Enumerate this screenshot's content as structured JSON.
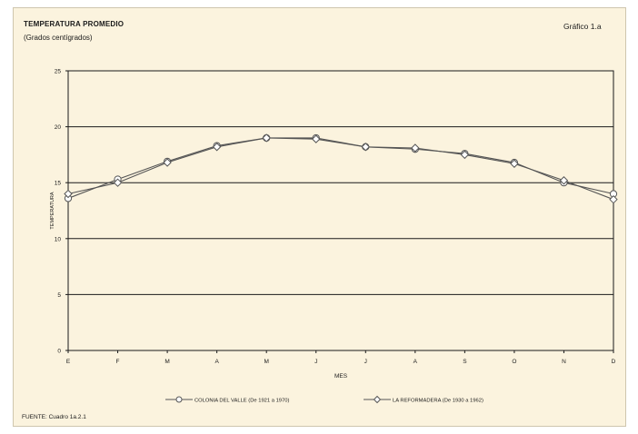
{
  "header": {
    "title": "TEMPERATURA PROMEDIO",
    "subtitle": "(Grados centígrados)",
    "figure_number": "Gráfico 1.a"
  },
  "footer": {
    "source": "FUENTE: Cuadro 1a.2.1"
  },
  "colors": {
    "panel_bg": "#fbf3de",
    "plot_bg": "#fbf3de",
    "gridline": "#1a1a1a",
    "series_line": "#555555"
  },
  "chart_data": {
    "type": "line",
    "xlabel": "MES",
    "ylabel": "TEMPERATURA",
    "categories": [
      "E",
      "F",
      "M",
      "A",
      "M",
      "J",
      "J",
      "A",
      "S",
      "O",
      "N",
      "D"
    ],
    "y_ticks": [
      "0",
      "5",
      "10",
      "15",
      "20",
      "25"
    ],
    "ylim": [
      0,
      25
    ],
    "grid": true,
    "legend_position": "bottom",
    "series": [
      {
        "name": "COLONIA DEL VALLE (De 1921 a 1970)",
        "marker": "circle",
        "values": [
          13.6,
          15.3,
          16.9,
          18.3,
          19.0,
          19.0,
          18.2,
          18.0,
          17.6,
          16.8,
          15.0,
          14.0
        ]
      },
      {
        "name": "LA REFORMADERA (De 1930 a 1962)",
        "marker": "diamond",
        "values": [
          14.0,
          15.0,
          16.8,
          18.2,
          19.0,
          18.9,
          18.2,
          18.1,
          17.5,
          16.7,
          15.2,
          13.5
        ]
      }
    ]
  }
}
